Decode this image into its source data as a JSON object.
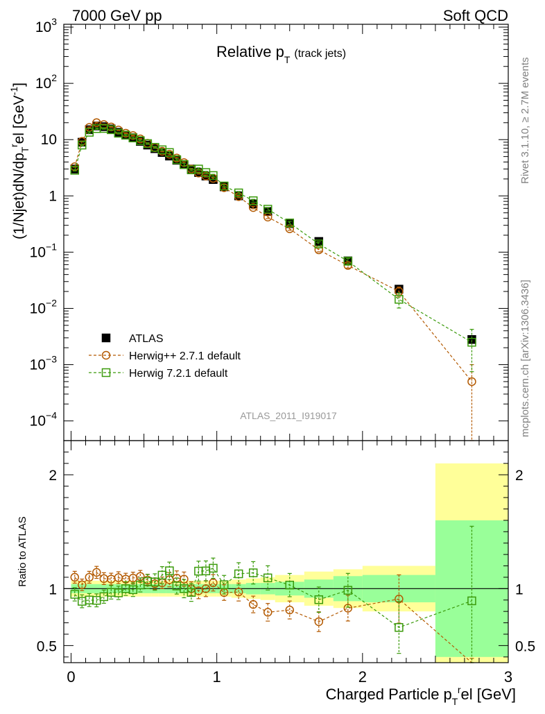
{
  "header": {
    "energy_label": "7000 GeV pp",
    "process_label": "Soft QCD",
    "side_rivet": "Rivet 3.1.10, ≥ 2.7M events",
    "side_mcplots": "mcplots.cern.ch [arXiv:1306.3436]"
  },
  "chart_data": {
    "type": "scatter",
    "title": "Relative p_T (track jets)",
    "title_main": "Relative p",
    "title_sub": "T",
    "title_note": "(track jets)",
    "analysis_id": "ATLAS_2011_I919017",
    "xlabel": "Charged Particle p_T^rel [GeV]",
    "xlabel_main": "Charged Particle p",
    "xlabel_sup": "r",
    "xlabel_sub": "T",
    "xlabel_tail": "el [GeV]",
    "ylabel": "(1/Njet)dN/dp_T^rel [GeV^-1]",
    "ratio_ylabel": "Ratio to ATLAS",
    "xlim": [
      -0.05,
      3.0
    ],
    "ylim_main_log10": [
      -4.35,
      3.05
    ],
    "ylim_ratio": [
      0.35,
      2.3
    ],
    "x_ticks": [
      "0",
      "1",
      "2",
      "3"
    ],
    "y_ticks_main": [
      {
        "base": "10",
        "exp": "3"
      },
      {
        "base": "10",
        "exp": "2"
      },
      {
        "base": "10",
        "exp": ""
      },
      {
        "base": "1",
        "exp": ""
      },
      {
        "base": "10",
        "exp": "−1"
      },
      {
        "base": "10",
        "exp": "−2"
      },
      {
        "base": "10",
        "exp": "−3"
      },
      {
        "base": "10",
        "exp": "−4"
      }
    ],
    "y_ticks_ratio": [
      "2",
      "1",
      "0.5"
    ],
    "legend": [
      {
        "name": "ATLAS",
        "marker": "filled-square",
        "color": "#000000"
      },
      {
        "name": "Herwig++ 2.7.1 default",
        "marker": "open-circle",
        "color": "#b35900"
      },
      {
        "name": "Herwig 7.2.1 default",
        "marker": "open-square",
        "color": "#3a9a0a"
      }
    ],
    "x": [
      0.025,
      0.075,
      0.125,
      0.175,
      0.225,
      0.275,
      0.325,
      0.375,
      0.425,
      0.475,
      0.525,
      0.575,
      0.625,
      0.675,
      0.725,
      0.775,
      0.825,
      0.875,
      0.925,
      0.975,
      1.05,
      1.15,
      1.25,
      1.35,
      1.5,
      1.7,
      1.9,
      2.25,
      2.75
    ],
    "x_bin_edges": [
      0.0,
      0.05,
      0.1,
      0.15,
      0.2,
      0.25,
      0.3,
      0.35,
      0.4,
      0.45,
      0.5,
      0.55,
      0.6,
      0.65,
      0.7,
      0.75,
      0.8,
      0.85,
      0.9,
      0.95,
      1.0,
      1.1,
      1.2,
      1.3,
      1.4,
      1.6,
      1.8,
      2.0,
      2.5,
      3.0
    ],
    "series": [
      {
        "name": "ATLAS",
        "values": [
          3.0,
          9.0,
          15.0,
          17.5,
          17.0,
          15.5,
          13.5,
          12.0,
          10.8,
          9.3,
          8.0,
          6.9,
          5.9,
          5.1,
          4.3,
          3.6,
          3.0,
          2.6,
          2.25,
          1.95,
          1.45,
          1.0,
          0.72,
          0.53,
          0.32,
          0.155,
          0.07,
          0.022,
          0.0028
        ]
      },
      {
        "name": "Herwig++ 2.7.1 default",
        "values": [
          3.3,
          9.3,
          16.5,
          20.0,
          18.5,
          16.8,
          14.8,
          13.0,
          11.8,
          10.3,
          8.6,
          7.2,
          6.2,
          5.5,
          4.7,
          3.9,
          3.0,
          2.55,
          2.25,
          2.05,
          1.4,
          0.97,
          0.62,
          0.42,
          0.26,
          0.11,
          0.058,
          0.02,
          0.0005
        ],
        "errors_rel": [
          0.02,
          0.02,
          0.02,
          0.02,
          0.02,
          0.02,
          0.02,
          0.02,
          0.02,
          0.02,
          0.02,
          0.02,
          0.02,
          0.03,
          0.03,
          0.03,
          0.03,
          0.04,
          0.04,
          0.04,
          0.04,
          0.05,
          0.05,
          0.06,
          0.06,
          0.08,
          0.1,
          0.2,
          1.0
        ]
      },
      {
        "name": "Herwig 7.2.1 default",
        "values": [
          2.85,
          8.0,
          13.5,
          15.7,
          15.8,
          15.0,
          13.0,
          12.0,
          10.7,
          9.6,
          8.5,
          7.3,
          6.6,
          5.9,
          4.4,
          3.6,
          2.9,
          3.0,
          2.6,
          2.3,
          1.5,
          1.13,
          0.82,
          0.58,
          0.33,
          0.14,
          0.069,
          0.0145,
          0.0025
        ],
        "errors_rel": [
          0.03,
          0.03,
          0.03,
          0.03,
          0.03,
          0.03,
          0.03,
          0.03,
          0.03,
          0.03,
          0.03,
          0.04,
          0.04,
          0.04,
          0.04,
          0.05,
          0.05,
          0.05,
          0.05,
          0.05,
          0.05,
          0.06,
          0.06,
          0.07,
          0.07,
          0.09,
          0.12,
          0.3,
          0.7
        ]
      }
    ],
    "ratio": {
      "atlas_band_inner": [
        0.04,
        0.04,
        0.04,
        0.04,
        0.04,
        0.04,
        0.04,
        0.04,
        0.04,
        0.04,
        0.04,
        0.04,
        0.04,
        0.04,
        0.04,
        0.04,
        0.04,
        0.04,
        0.04,
        0.04,
        0.04,
        0.04,
        0.05,
        0.05,
        0.06,
        0.08,
        0.11,
        0.12,
        0.6
      ],
      "atlas_band_outer": [
        0.07,
        0.07,
        0.07,
        0.07,
        0.07,
        0.07,
        0.07,
        0.07,
        0.07,
        0.07,
        0.07,
        0.07,
        0.07,
        0.07,
        0.07,
        0.07,
        0.07,
        0.07,
        0.07,
        0.07,
        0.07,
        0.08,
        0.09,
        0.1,
        0.12,
        0.15,
        0.17,
        0.2,
        1.1
      ]
    }
  }
}
